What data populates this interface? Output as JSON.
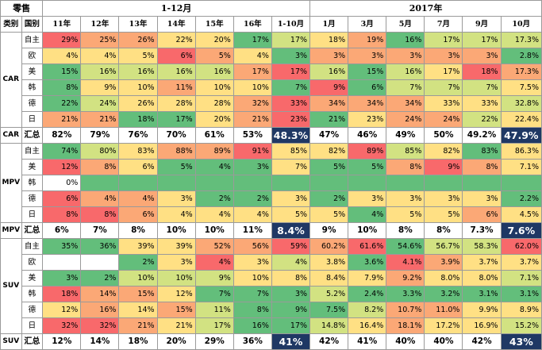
{
  "header": {
    "title": "零售",
    "period_a": "1-12月",
    "period_b": "2017年",
    "cat_label": "类别",
    "region_label": "国别",
    "columns": [
      "11年",
      "12年",
      "13年",
      "14年",
      "15年",
      "16年",
      "1-10月",
      "1月",
      "3月",
      "5月",
      "7月",
      "9月",
      "10月"
    ]
  },
  "colors": {
    "red": "#f8696b",
    "orange": "#fba876",
    "yellow": "#ffe084",
    "lime": "#d2e282",
    "green": "#63be7b",
    "white": "#ffffff",
    "navy": "#1f3864"
  },
  "groups": [
    {
      "category": "CAR",
      "rows": [
        {
          "region": "自主",
          "cells": [
            [
              "29%",
              "red"
            ],
            [
              "25%",
              "orange"
            ],
            [
              "26%",
              "orange"
            ],
            [
              "22%",
              "yellow"
            ],
            [
              "20%",
              "yellow"
            ],
            [
              "17%",
              "green"
            ],
            [
              "17%",
              "lime"
            ],
            [
              "18%",
              "yellow"
            ],
            [
              "19%",
              "orange"
            ],
            [
              "16%",
              "green"
            ],
            [
              "17%",
              "lime"
            ],
            [
              "17%",
              "lime"
            ],
            [
              "17.3%",
              "lime"
            ]
          ]
        },
        {
          "region": "欧",
          "cells": [
            [
              "4%",
              "yellow"
            ],
            [
              "4%",
              "yellow"
            ],
            [
              "5%",
              "yellow"
            ],
            [
              "6%",
              "red"
            ],
            [
              "5%",
              "orange"
            ],
            [
              "4%",
              "yellow"
            ],
            [
              "3%",
              "green"
            ],
            [
              "3%",
              "orange"
            ],
            [
              "3%",
              "orange"
            ],
            [
              "3%",
              "orange"
            ],
            [
              "3%",
              "orange"
            ],
            [
              "3%",
              "orange"
            ],
            [
              "2.8%",
              "green"
            ]
          ]
        },
        {
          "region": "美",
          "cells": [
            [
              "15%",
              "green"
            ],
            [
              "16%",
              "lime"
            ],
            [
              "16%",
              "lime"
            ],
            [
              "16%",
              "lime"
            ],
            [
              "16%",
              "lime"
            ],
            [
              "17%",
              "orange"
            ],
            [
              "17%",
              "red"
            ],
            [
              "16%",
              "lime"
            ],
            [
              "15%",
              "green"
            ],
            [
              "16%",
              "lime"
            ],
            [
              "17%",
              "yellow"
            ],
            [
              "18%",
              "red"
            ],
            [
              "17.3%",
              "orange"
            ]
          ]
        },
        {
          "region": "韩",
          "cells": [
            [
              "8%",
              "green"
            ],
            [
              "9%",
              "yellow"
            ],
            [
              "10%",
              "yellow"
            ],
            [
              "11%",
              "orange"
            ],
            [
              "10%",
              "yellow"
            ],
            [
              "10%",
              "yellow"
            ],
            [
              "7%",
              "green"
            ],
            [
              "9%",
              "red"
            ],
            [
              "6%",
              "green"
            ],
            [
              "7%",
              "lime"
            ],
            [
              "7%",
              "lime"
            ],
            [
              "7%",
              "lime"
            ],
            [
              "7.5%",
              "yellow"
            ]
          ]
        },
        {
          "region": "德",
          "cells": [
            [
              "22%",
              "green"
            ],
            [
              "24%",
              "lime"
            ],
            [
              "26%",
              "yellow"
            ],
            [
              "28%",
              "yellow"
            ],
            [
              "28%",
              "yellow"
            ],
            [
              "32%",
              "orange"
            ],
            [
              "33%",
              "red"
            ],
            [
              "34%",
              "orange"
            ],
            [
              "34%",
              "orange"
            ],
            [
              "34%",
              "orange"
            ],
            [
              "33%",
              "yellow"
            ],
            [
              "33%",
              "yellow"
            ],
            [
              "32.8%",
              "lime"
            ]
          ]
        },
        {
          "region": "日",
          "cells": [
            [
              "21%",
              "orange"
            ],
            [
              "21%",
              "orange"
            ],
            [
              "18%",
              "green"
            ],
            [
              "17%",
              "green"
            ],
            [
              "20%",
              "yellow"
            ],
            [
              "21%",
              "orange"
            ],
            [
              "23%",
              "red"
            ],
            [
              "21%",
              "green"
            ],
            [
              "23%",
              "yellow"
            ],
            [
              "24%",
              "orange"
            ],
            [
              "24%",
              "orange"
            ],
            [
              "22%",
              "lime"
            ],
            [
              "22.4%",
              "yellow"
            ]
          ]
        }
      ],
      "summary": {
        "region": "汇总",
        "cells": [
          "82%",
          "79%",
          "76%",
          "70%",
          "61%",
          "53%",
          "48.3%",
          "47%",
          "46%",
          "49%",
          "50%",
          "49.2%",
          "47.9%"
        ]
      }
    },
    {
      "category": "MPV",
      "rows": [
        {
          "region": "自主",
          "cells": [
            [
              "74%",
              "green"
            ],
            [
              "80%",
              "lime"
            ],
            [
              "83%",
              "yellow"
            ],
            [
              "88%",
              "orange"
            ],
            [
              "89%",
              "orange"
            ],
            [
              "91%",
              "red"
            ],
            [
              "85%",
              "yellow"
            ],
            [
              "82%",
              "yellow"
            ],
            [
              "89%",
              "red"
            ],
            [
              "85%",
              "lime"
            ],
            [
              "82%",
              "yellow"
            ],
            [
              "83%",
              "green"
            ],
            [
              "86.3%",
              "yellow"
            ]
          ]
        },
        {
          "region": "美",
          "cells": [
            [
              "12%",
              "red"
            ],
            [
              "8%",
              "orange"
            ],
            [
              "6%",
              "yellow"
            ],
            [
              "5%",
              "green"
            ],
            [
              "4%",
              "green"
            ],
            [
              "3%",
              "green"
            ],
            [
              "7%",
              "yellow"
            ],
            [
              "5%",
              "green"
            ],
            [
              "5%",
              "green"
            ],
            [
              "8%",
              "orange"
            ],
            [
              "9%",
              "red"
            ],
            [
              "8%",
              "orange"
            ],
            [
              "7.1%",
              "yellow"
            ]
          ]
        },
        {
          "region": "韩",
          "cells": [
            [
              "0%",
              "white"
            ],
            [
              "",
              "green"
            ],
            [
              "",
              "green"
            ],
            [
              "",
              "green"
            ],
            [
              "",
              "green"
            ],
            [
              "",
              "green"
            ],
            [
              "",
              "green"
            ],
            [
              "",
              "green"
            ],
            [
              "",
              "green"
            ],
            [
              "",
              "green"
            ],
            [
              "",
              "green"
            ],
            [
              "",
              "green"
            ],
            [
              "",
              "green"
            ]
          ]
        },
        {
          "region": "德",
          "cells": [
            [
              "6%",
              "red"
            ],
            [
              "4%",
              "orange"
            ],
            [
              "4%",
              "orange"
            ],
            [
              "3%",
              "yellow"
            ],
            [
              "2%",
              "green"
            ],
            [
              "2%",
              "green"
            ],
            [
              "3%",
              "yellow"
            ],
            [
              "2%",
              "green"
            ],
            [
              "3%",
              "yellow"
            ],
            [
              "3%",
              "yellow"
            ],
            [
              "3%",
              "yellow"
            ],
            [
              "3%",
              "yellow"
            ],
            [
              "2.2%",
              "green"
            ]
          ]
        },
        {
          "region": "日",
          "cells": [
            [
              "8%",
              "red"
            ],
            [
              "8%",
              "red"
            ],
            [
              "6%",
              "orange"
            ],
            [
              "4%",
              "yellow"
            ],
            [
              "4%",
              "yellow"
            ],
            [
              "4%",
              "yellow"
            ],
            [
              "5%",
              "yellow"
            ],
            [
              "5%",
              "yellow"
            ],
            [
              "4%",
              "green"
            ],
            [
              "5%",
              "yellow"
            ],
            [
              "5%",
              "yellow"
            ],
            [
              "6%",
              "orange"
            ],
            [
              "4.5%",
              "yellow"
            ]
          ]
        }
      ],
      "summary": {
        "region": "汇总",
        "cells": [
          "6%",
          "7%",
          "8%",
          "10%",
          "10%",
          "11%",
          "8.4%",
          "9%",
          "10%",
          "8%",
          "8%",
          "7.3%",
          "7.6%"
        ]
      }
    },
    {
      "category": "SUV",
      "rows": [
        {
          "region": "自主",
          "cells": [
            [
              "35%",
              "green"
            ],
            [
              "36%",
              "green"
            ],
            [
              "39%",
              "yellow"
            ],
            [
              "39%",
              "yellow"
            ],
            [
              "52%",
              "orange"
            ],
            [
              "56%",
              "orange"
            ],
            [
              "59%",
              "red"
            ],
            [
              "60.2%",
              "orange"
            ],
            [
              "61.6%",
              "red"
            ],
            [
              "54.6%",
              "green"
            ],
            [
              "56.7%",
              "lime"
            ],
            [
              "58.3%",
              "lime"
            ],
            [
              "62.0%",
              "red"
            ]
          ]
        },
        {
          "region": "欧",
          "cells": [
            [
              "",
              "white"
            ],
            [
              "",
              "white"
            ],
            [
              "2%",
              "green"
            ],
            [
              "3%",
              "yellow"
            ],
            [
              "4%",
              "red"
            ],
            [
              "3%",
              "yellow"
            ],
            [
              "4%",
              "lime"
            ],
            [
              "3.8%",
              "yellow"
            ],
            [
              "3.6%",
              "green"
            ],
            [
              "4.1%",
              "red"
            ],
            [
              "3.9%",
              "orange"
            ],
            [
              "3.7%",
              "yellow"
            ],
            [
              "3.7%",
              "yellow"
            ]
          ]
        },
        {
          "region": "美",
          "cells": [
            [
              "3%",
              "green"
            ],
            [
              "2%",
              "green"
            ],
            [
              "10%",
              "lime"
            ],
            [
              "10%",
              "lime"
            ],
            [
              "9%",
              "lime"
            ],
            [
              "10%",
              "yellow"
            ],
            [
              "8%",
              "yellow"
            ],
            [
              "8.4%",
              "yellow"
            ],
            [
              "7.9%",
              "yellow"
            ],
            [
              "9.2%",
              "orange"
            ],
            [
              "8.0%",
              "yellow"
            ],
            [
              "8.0%",
              "yellow"
            ],
            [
              "7.1%",
              "lime"
            ]
          ]
        },
        {
          "region": "韩",
          "cells": [
            [
              "18%",
              "red"
            ],
            [
              "14%",
              "orange"
            ],
            [
              "15%",
              "orange"
            ],
            [
              "12%",
              "yellow"
            ],
            [
              "7%",
              "green"
            ],
            [
              "7%",
              "green"
            ],
            [
              "3%",
              "green"
            ],
            [
              "5.2%",
              "lime"
            ],
            [
              "2.4%",
              "green"
            ],
            [
              "3.3%",
              "green"
            ],
            [
              "3.2%",
              "green"
            ],
            [
              "3.1%",
              "green"
            ],
            [
              "3.1%",
              "green"
            ]
          ]
        },
        {
          "region": "德",
          "cells": [
            [
              "12%",
              "yellow"
            ],
            [
              "16%",
              "orange"
            ],
            [
              "14%",
              "yellow"
            ],
            [
              "15%",
              "orange"
            ],
            [
              "11%",
              "lime"
            ],
            [
              "8%",
              "green"
            ],
            [
              "9%",
              "green"
            ],
            [
              "7.5%",
              "green"
            ],
            [
              "8.2%",
              "lime"
            ],
            [
              "10.7%",
              "orange"
            ],
            [
              "11.0%",
              "orange"
            ],
            [
              "9.9%",
              "yellow"
            ],
            [
              "8.9%",
              "yellow"
            ]
          ]
        },
        {
          "region": "日",
          "cells": [
            [
              "32%",
              "red"
            ],
            [
              "32%",
              "red"
            ],
            [
              "21%",
              "orange"
            ],
            [
              "21%",
              "yellow"
            ],
            [
              "17%",
              "lime"
            ],
            [
              "16%",
              "green"
            ],
            [
              "17%",
              "green"
            ],
            [
              "14.8%",
              "lime"
            ],
            [
              "16.4%",
              "yellow"
            ],
            [
              "18.1%",
              "orange"
            ],
            [
              "17.2%",
              "yellow"
            ],
            [
              "16.9%",
              "yellow"
            ],
            [
              "15.2%",
              "lime"
            ]
          ]
        }
      ],
      "summary": {
        "region": "汇总",
        "cells": [
          "12%",
          "14%",
          "18%",
          "20%",
          "29%",
          "36%",
          "41%",
          "42%",
          "41%",
          "40%",
          "40%",
          "42%",
          "43%"
        ]
      }
    }
  ]
}
